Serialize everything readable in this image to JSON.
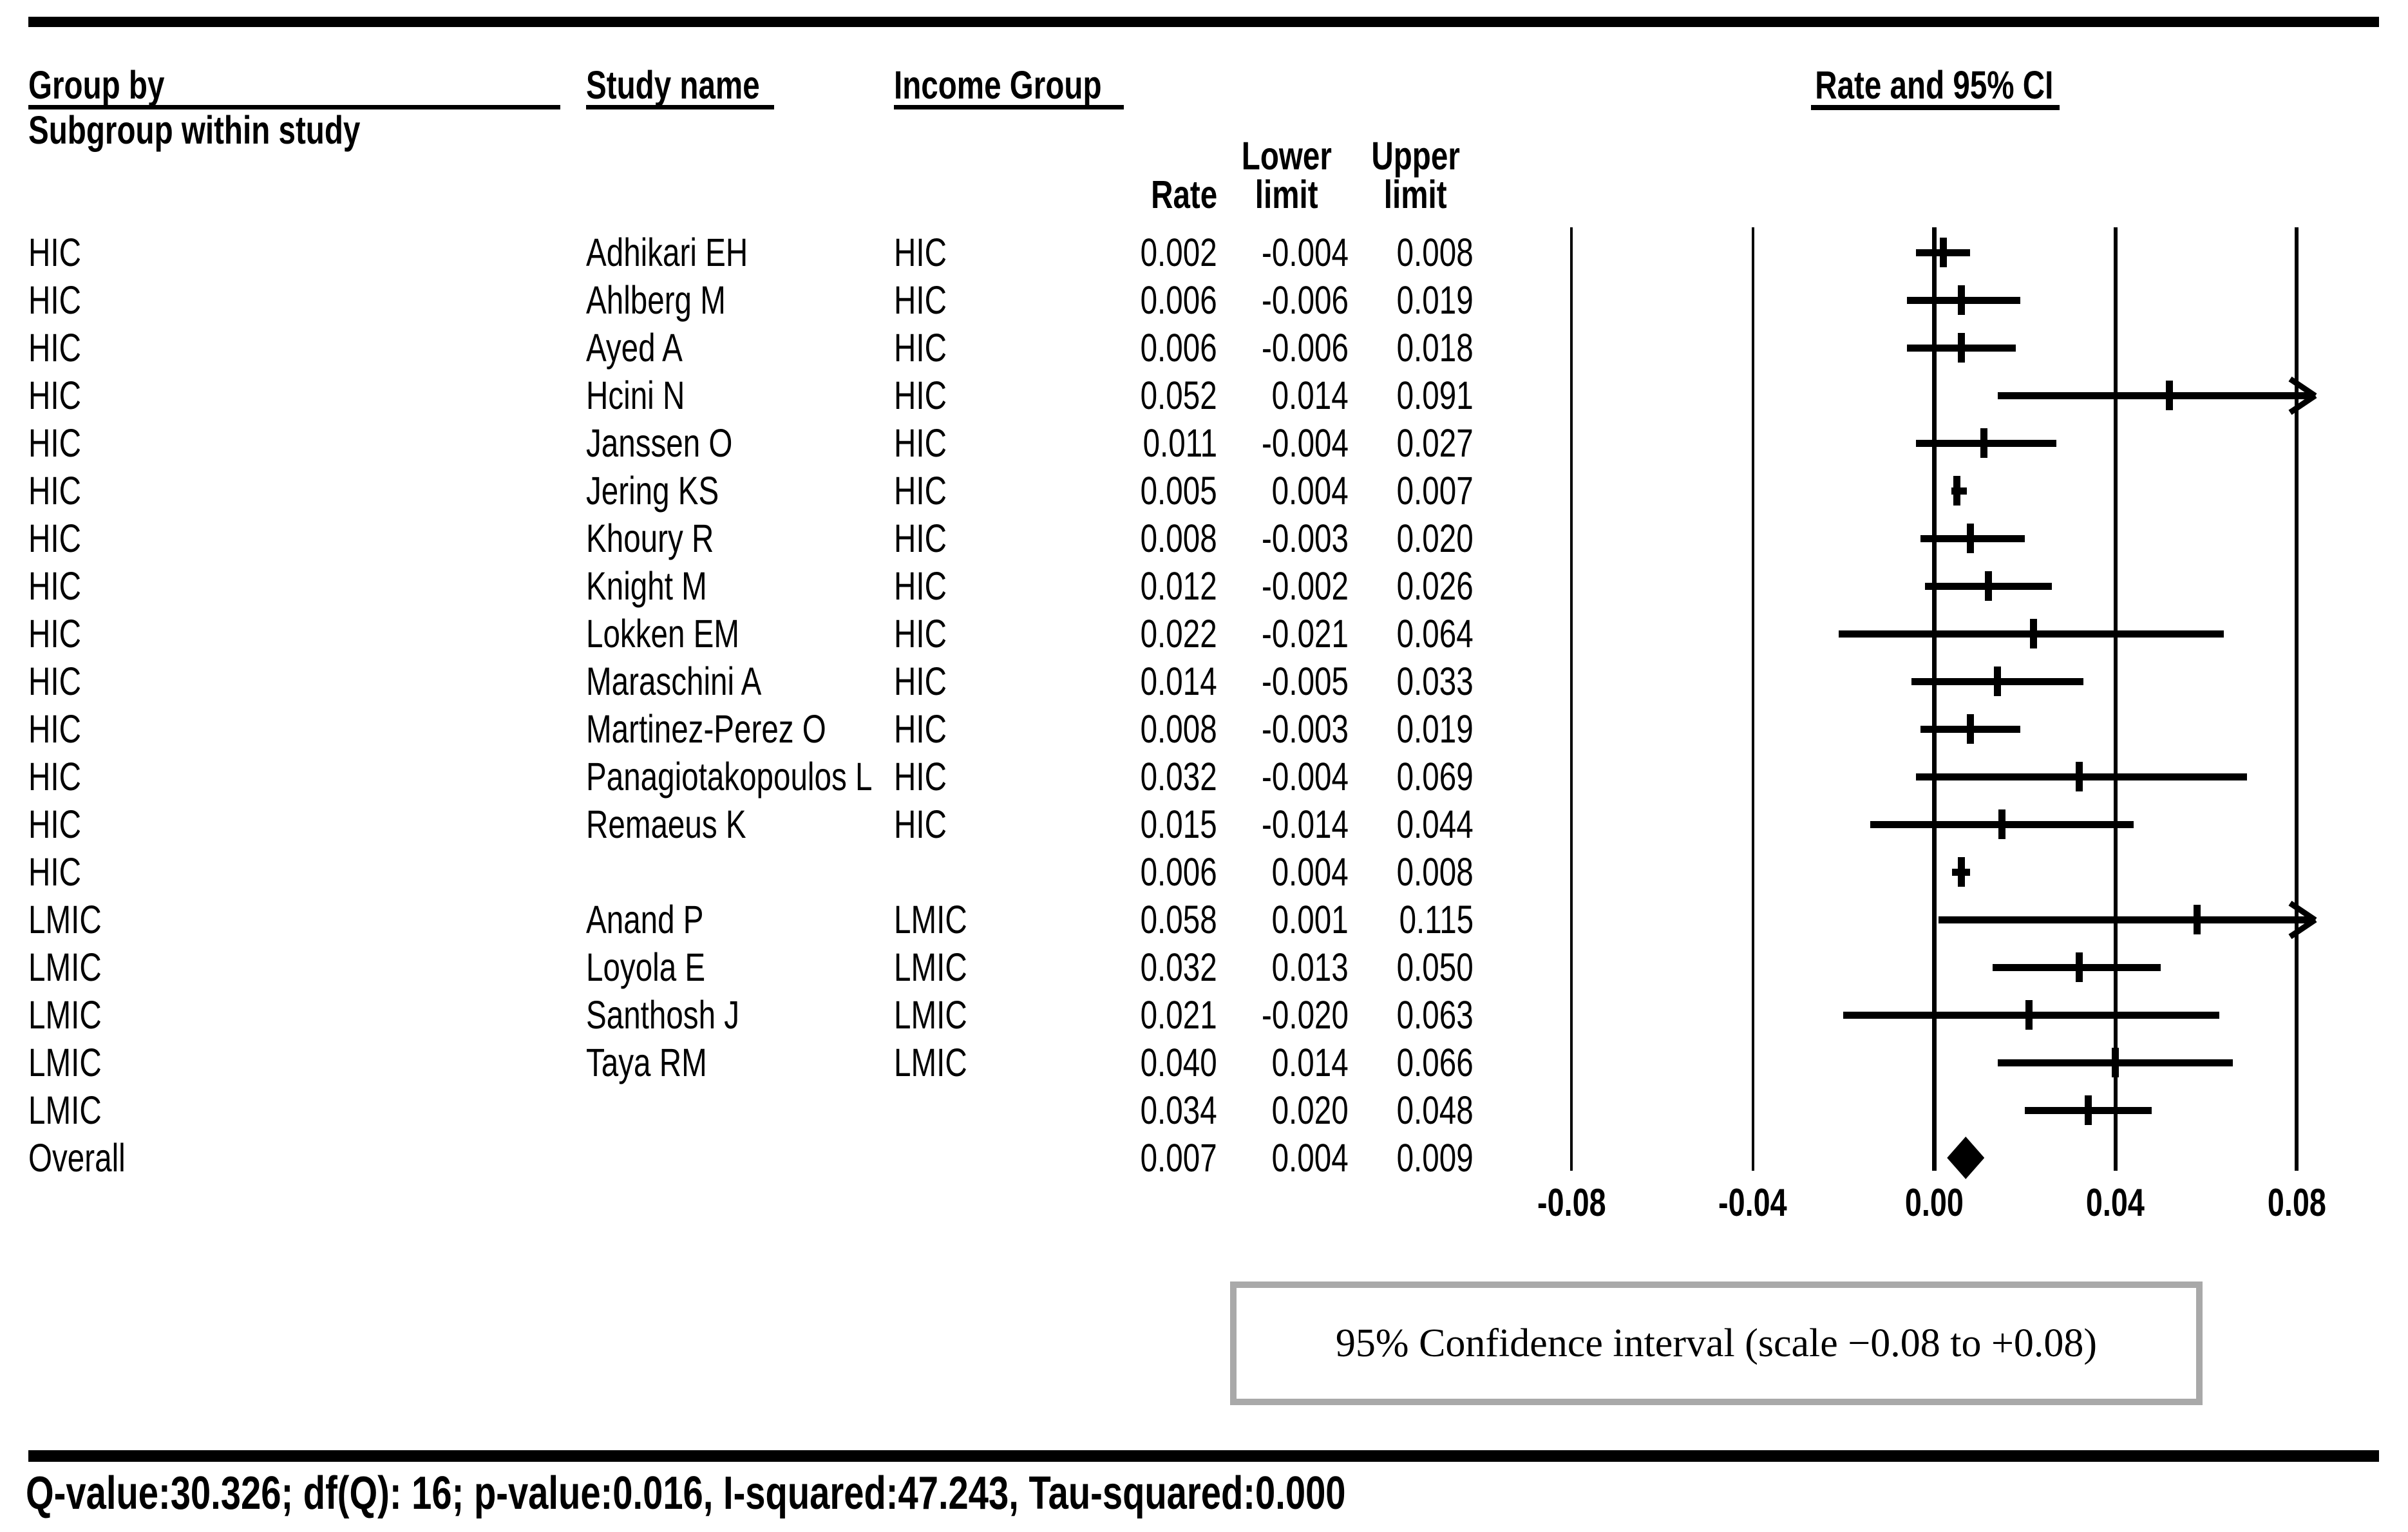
{
  "header": {
    "group_by_line1": "Group by",
    "group_by_line2": "Subgroup within study",
    "study_name": "Study name",
    "income_group": "Income Group",
    "rate_ci": "Rate and 95% CI",
    "rate": "Rate",
    "lower_line1": "Lower",
    "lower_line2": "limit",
    "upper_line1": "Upper",
    "upper_line2": "limit"
  },
  "caption": "95% Confidence interval (scale −0.08 to +0.08)",
  "footer_stats": "Q-value:30.326; df(Q): 16; p-value:0.016, I-squared:47.243, Tau-squared:0.000",
  "colors": {
    "text": "#000000",
    "caption_border": "#a9a9a9",
    "background": "#ffffff"
  },
  "chart_data": {
    "type": "forest",
    "title": "Rate and 95% CI",
    "columns": [
      "Group by / Subgroup within study",
      "Study name",
      "Income Group",
      "Rate",
      "Lower limit",
      "Upper limit"
    ],
    "axis_range": [
      -0.08,
      0.08
    ],
    "axis": {
      "tick_labels": [
        "-0.08",
        "-0.04",
        "0.00",
        "0.04",
        "0.08"
      ],
      "tick_values": [
        -0.08,
        -0.04,
        0,
        0.04,
        0.08
      ]
    },
    "rows": [
      {
        "group": "HIC",
        "study": "Adhikari EH",
        "income": "HIC",
        "rate": "0.002",
        "lower": "-0.004",
        "upper": "0.008",
        "marker": "ci"
      },
      {
        "group": "HIC",
        "study": "Ahlberg M",
        "income": "HIC",
        "rate": "0.006",
        "lower": "-0.006",
        "upper": "0.019",
        "marker": "ci"
      },
      {
        "group": "HIC",
        "study": "Ayed A",
        "income": "HIC",
        "rate": "0.006",
        "lower": "-0.006",
        "upper": "0.018",
        "marker": "ci"
      },
      {
        "group": "HIC",
        "study": "Hcini N",
        "income": "HIC",
        "rate": "0.052",
        "lower": "0.014",
        "upper": "0.091",
        "marker": "ci"
      },
      {
        "group": "HIC",
        "study": "Janssen O",
        "income": "HIC",
        "rate": "0.011",
        "lower": "-0.004",
        "upper": "0.027",
        "marker": "ci"
      },
      {
        "group": "HIC",
        "study": "Jering KS",
        "income": "HIC",
        "rate": "0.005",
        "lower": "0.004",
        "upper": "0.007",
        "marker": "ci"
      },
      {
        "group": "HIC",
        "study": "Khoury R",
        "income": "HIC",
        "rate": "0.008",
        "lower": "-0.003",
        "upper": "0.020",
        "marker": "ci"
      },
      {
        "group": "HIC",
        "study": "Knight M",
        "income": "HIC",
        "rate": "0.012",
        "lower": "-0.002",
        "upper": "0.026",
        "marker": "ci"
      },
      {
        "group": "HIC",
        "study": "Lokken EM",
        "income": "HIC",
        "rate": "0.022",
        "lower": "-0.021",
        "upper": "0.064",
        "marker": "ci"
      },
      {
        "group": "HIC",
        "study": "Maraschini A",
        "income": "HIC",
        "rate": "0.014",
        "lower": "-0.005",
        "upper": "0.033",
        "marker": "ci"
      },
      {
        "group": "HIC",
        "study": "Martinez-Perez O",
        "income": "HIC",
        "rate": "0.008",
        "lower": "-0.003",
        "upper": "0.019",
        "marker": "ci"
      },
      {
        "group": "HIC",
        "study": "Panagiotakopoulos L",
        "income": "HIC",
        "rate": "0.032",
        "lower": "-0.004",
        "upper": "0.069",
        "marker": "ci"
      },
      {
        "group": "HIC",
        "study": "Remaeus K",
        "income": "HIC",
        "rate": "0.015",
        "lower": "-0.014",
        "upper": "0.044",
        "marker": "ci"
      },
      {
        "group": "HIC",
        "study": "",
        "income": "",
        "rate": "0.006",
        "lower": "0.004",
        "upper": "0.008",
        "marker": "ci",
        "summary": true
      },
      {
        "group": "LMIC",
        "study": "Anand P",
        "income": "LMIC",
        "rate": "0.058",
        "lower": "0.001",
        "upper": "0.115",
        "marker": "ci"
      },
      {
        "group": "LMIC",
        "study": "Loyola E",
        "income": "LMIC",
        "rate": "0.032",
        "lower": "0.013",
        "upper": "0.050",
        "marker": "ci"
      },
      {
        "group": "LMIC",
        "study": "Santhosh J",
        "income": "LMIC",
        "rate": "0.021",
        "lower": "-0.020",
        "upper": "0.063",
        "marker": "ci"
      },
      {
        "group": "LMIC",
        "study": "Taya RM",
        "income": "LMIC",
        "rate": "0.040",
        "lower": "0.014",
        "upper": "0.066",
        "marker": "ci"
      },
      {
        "group": "LMIC",
        "study": "",
        "income": "",
        "rate": "0.034",
        "lower": "0.020",
        "upper": "0.048",
        "marker": "ci",
        "summary": true
      },
      {
        "group": "Overall",
        "study": "",
        "income": "",
        "rate": "0.007",
        "lower": "0.004",
        "upper": "0.009",
        "marker": "diamond"
      }
    ]
  }
}
